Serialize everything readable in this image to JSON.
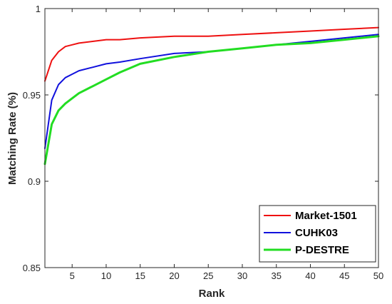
{
  "chart_data": {
    "type": "line",
    "xlabel": "Rank",
    "ylabel": "Matching Rate (%)",
    "xlim": [
      1,
      50
    ],
    "ylim": [
      0.85,
      1.0
    ],
    "xticks": [
      5,
      10,
      15,
      20,
      25,
      30,
      35,
      40,
      45,
      50
    ],
    "yticks": [
      0.85,
      0.9,
      0.95,
      1.0
    ],
    "xtick_labels": [
      "5",
      "10",
      "15",
      "20",
      "25",
      "30",
      "35",
      "40",
      "45",
      "50"
    ],
    "ytick_labels": [
      "0.85",
      "0.9",
      "0.95",
      "1"
    ],
    "grid": false,
    "legend_position": "bottom-right",
    "x": [
      1,
      2,
      3,
      4,
      5,
      6,
      8,
      10,
      12,
      15,
      20,
      25,
      30,
      35,
      40,
      45,
      50
    ],
    "series": [
      {
        "name": "Market-1501",
        "color": "#ee1111",
        "values": [
          0.958,
          0.97,
          0.975,
          0.978,
          0.979,
          0.98,
          0.981,
          0.982,
          0.982,
          0.983,
          0.984,
          0.984,
          0.985,
          0.986,
          0.987,
          0.988,
          0.989
        ]
      },
      {
        "name": "CUHK03",
        "color": "#1111dd",
        "values": [
          0.919,
          0.947,
          0.956,
          0.96,
          0.962,
          0.964,
          0.966,
          0.968,
          0.969,
          0.971,
          0.974,
          0.975,
          0.977,
          0.979,
          0.981,
          0.983,
          0.985
        ]
      },
      {
        "name": "P-DESTRE",
        "color": "#22dd22",
        "values": [
          0.91,
          0.933,
          0.941,
          0.945,
          0.948,
          0.951,
          0.955,
          0.959,
          0.963,
          0.968,
          0.972,
          0.975,
          0.977,
          0.979,
          0.98,
          0.982,
          0.984
        ]
      }
    ]
  }
}
